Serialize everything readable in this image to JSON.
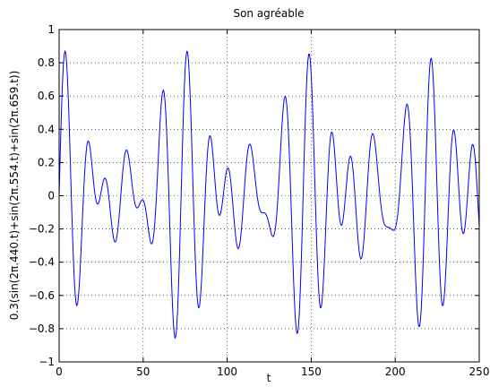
{
  "chart_data": {
    "type": "line",
    "title": "Son agréable",
    "xlabel": "t",
    "ylabel": "0.3(sin(2π.440.t)+sin(2π.554.t)+sin(2π.659.t))",
    "xlim": [
      0,
      250
    ],
    "ylim": [
      -1,
      1
    ],
    "xticks": [
      0,
      50,
      100,
      150,
      200,
      250
    ],
    "yticks": [
      -1,
      -0.8,
      -0.6,
      -0.4,
      -0.2,
      0,
      0.2,
      0.4,
      0.6,
      0.8,
      1
    ],
    "xtick_labels": [
      "0",
      "50",
      "100",
      "150",
      "200",
      "250"
    ],
    "ytick_labels": [
      "−1",
      "−0.8",
      "−0.6",
      "−0.4",
      "−0.2",
      "0",
      "0.2",
      "0.4",
      "0.6",
      "0.8",
      "1"
    ],
    "grid": true,
    "grid_style": "dotted",
    "series": [
      {
        "color": "#0000ff",
        "sample_step": 0.5,
        "formula": "0.3*(sin(2*pi*440*t/8000)+sin(2*pi*554*t/8000)+sin(2*pi*659*t/8000))",
        "x_start": 0,
        "x_end": 250
      }
    ]
  }
}
